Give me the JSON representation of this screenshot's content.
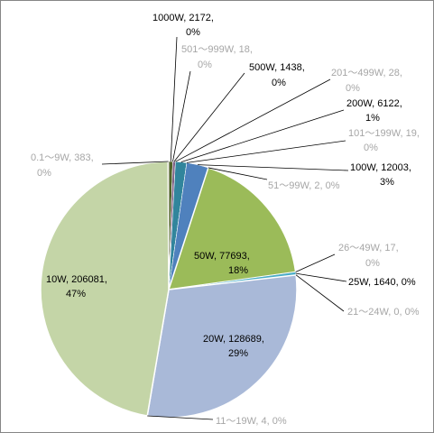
{
  "chart_data": {
    "type": "pie",
    "title": "",
    "slices": [
      {
        "label": "1000W",
        "value": 2172,
        "percent": "0%",
        "color": "#4f6228",
        "label_color": "#000000"
      },
      {
        "label": "501～999W",
        "value": 18,
        "percent": "0%",
        "color": "#a5a5a5",
        "label_color": "#a6a6a6"
      },
      {
        "label": "500W",
        "value": 1438,
        "percent": "0%",
        "color": "#7f6084",
        "label_color": "#000000"
      },
      {
        "label": "201～499W",
        "value": 28,
        "percent": "0%",
        "color": "#a5a5a5",
        "label_color": "#a6a6a6"
      },
      {
        "label": "200W",
        "value": 6122,
        "percent": "1%",
        "color": "#31859c",
        "label_color": "#000000"
      },
      {
        "label": "101～199W",
        "value": 19,
        "percent": "0%",
        "color": "#a5a5a5",
        "label_color": "#a6a6a6"
      },
      {
        "label": "100W",
        "value": 12003,
        "percent": "3%",
        "color": "#4f81bd",
        "label_color": "#000000"
      },
      {
        "label": "51～99W",
        "value": 2,
        "percent": "0%",
        "color": "#a5a5a5",
        "label_color": "#a6a6a6"
      },
      {
        "label": "50W",
        "value": 77693,
        "percent": "18%",
        "color": "#9bbb59",
        "label_color": "#000000"
      },
      {
        "label": "26～49W",
        "value": 17,
        "percent": "0%",
        "color": "#a5a5a5",
        "label_color": "#a6a6a6"
      },
      {
        "label": "25W",
        "value": 1640,
        "percent": "0%",
        "color": "#4bacc6",
        "label_color": "#000000"
      },
      {
        "label": "21～24W",
        "value": 0,
        "percent": "0%",
        "color": "#a5a5a5",
        "label_color": "#a6a6a6"
      },
      {
        "label": "20W",
        "value": 128689,
        "percent": "29%",
        "color": "#a9b9d8",
        "label_color": "#000000"
      },
      {
        "label": "11～19W",
        "value": 4,
        "percent": "0%",
        "color": "#a5a5a5",
        "label_color": "#a6a6a6"
      },
      {
        "label": "10W",
        "value": 206081,
        "percent": "47%",
        "color": "#c4d5a7",
        "label_color": "#000000"
      },
      {
        "label": "0.1～9W",
        "value": 383,
        "percent": "0%",
        "color": "#c4bd97",
        "label_color": "#a6a6a6"
      }
    ]
  }
}
